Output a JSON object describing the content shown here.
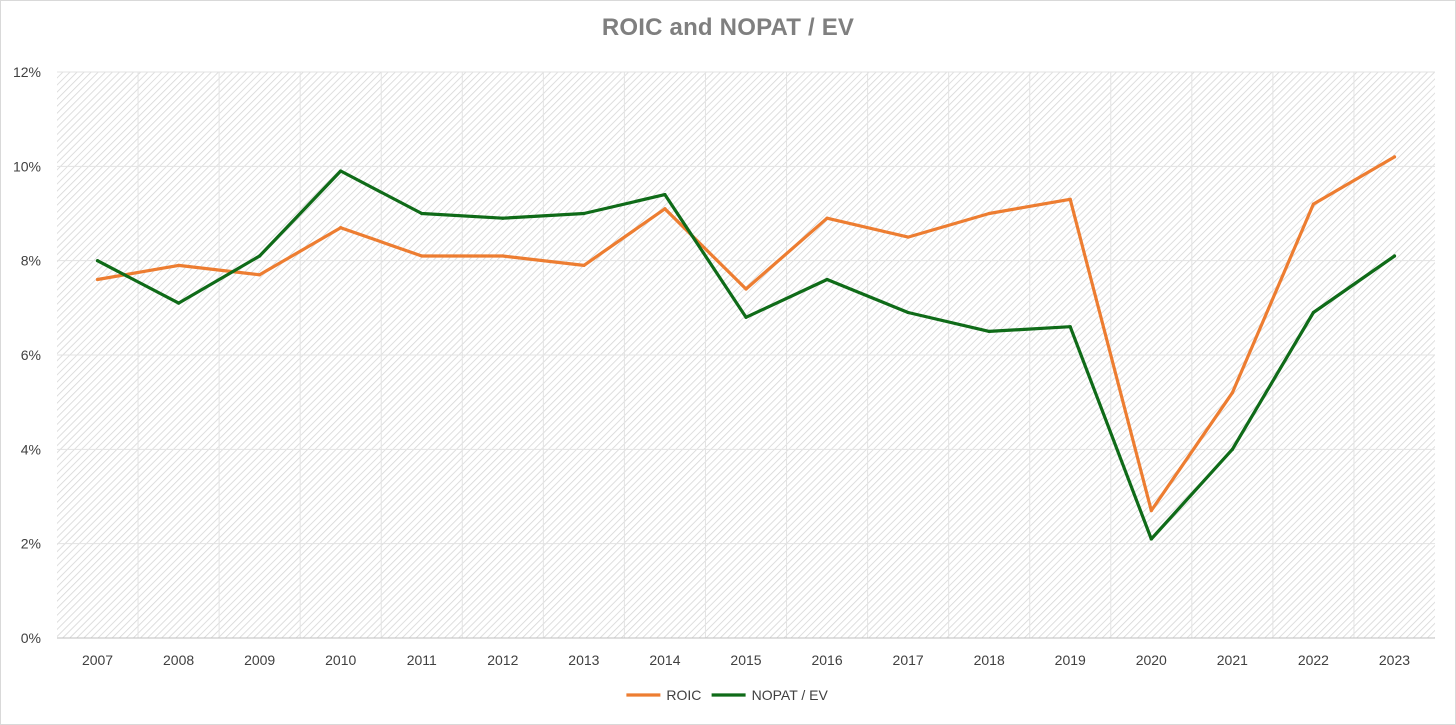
{
  "chart_data": {
    "type": "line",
    "title": "ROIC and NOPAT / EV",
    "xlabel": "",
    "ylabel": "",
    "categories": [
      "2007",
      "2008",
      "2009",
      "2010",
      "2011",
      "2012",
      "2013",
      "2014",
      "2015",
      "2016",
      "2017",
      "2018",
      "2019",
      "2020",
      "2021",
      "2022",
      "2023"
    ],
    "series": [
      {
        "name": "ROIC",
        "color": "#ed7d31",
        "values": [
          7.6,
          7.9,
          7.7,
          8.7,
          8.1,
          8.1,
          7.9,
          9.1,
          7.4,
          8.9,
          8.5,
          9.0,
          9.3,
          2.7,
          5.2,
          9.2,
          10.2
        ]
      },
      {
        "name": "NOPAT / EV",
        "color": "#0f6b18",
        "values": [
          8.0,
          7.1,
          8.1,
          9.9,
          9.0,
          8.9,
          9.0,
          9.4,
          6.8,
          7.6,
          6.9,
          6.5,
          6.6,
          2.1,
          4.0,
          6.9,
          8.1
        ]
      }
    ],
    "ylim": [
      0,
      12
    ],
    "y_ticks": [
      "0%",
      "2%",
      "4%",
      "6%",
      "8%",
      "10%",
      "12%"
    ],
    "y_tick_values": [
      0,
      2,
      4,
      6,
      8,
      10,
      12
    ],
    "grid": true,
    "legend_position": "bottom"
  }
}
